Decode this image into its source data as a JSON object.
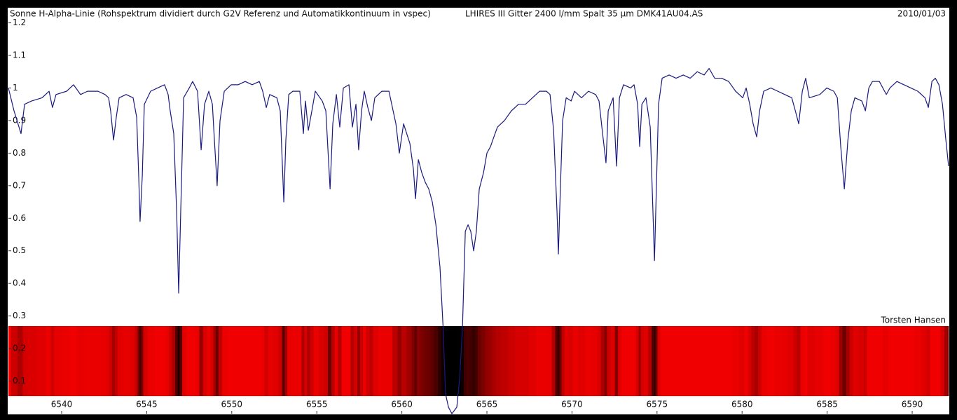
{
  "chart_data": {
    "type": "line",
    "title": "Sonne H-Alpha-Linie (Rohspektrum dividiert durch G2V Referenz und Automatikkontinuum in vspec)",
    "instrument": "LHIRES III  Gitter 2400 l/mm  Spalt 35 µm  DMK41AU04.AS",
    "date": "2010/01/03",
    "author": "Torsten Hansen",
    "color": "#1a1a80",
    "xlim": [
      6536.87,
      6592.14
    ],
    "ylim": [
      0,
      1.24
    ],
    "xticks": [
      6540,
      6545,
      6550,
      6555,
      6560,
      6565,
      6570,
      6575,
      6580,
      6585,
      6590
    ],
    "yticks": [
      0.1,
      0.2,
      0.3,
      0.4,
      0.5,
      0.6,
      0.7,
      0.8,
      0.9,
      1,
      1.1,
      1.2
    ],
    "x": [
      6536.87,
      6537.2,
      6537.61,
      6537.82,
      6538.23,
      6538.85,
      6539.26,
      6539.46,
      6539.67,
      6540.29,
      6540.7,
      6541.11,
      6541.52,
      6542.14,
      6542.55,
      6542.76,
      6542.88,
      6543.05,
      6543.21,
      6543.38,
      6543.79,
      6544.2,
      6544.41,
      6544.53,
      6544.61,
      6544.74,
      6544.86,
      6545.23,
      6545.64,
      6546.05,
      6546.26,
      6546.38,
      6546.59,
      6546.76,
      6546.88,
      6547.0,
      6547.17,
      6547.5,
      6547.7,
      6547.99,
      6548.2,
      6548.4,
      6548.65,
      6548.86,
      6548.98,
      6549.14,
      6549.31,
      6549.56,
      6549.97,
      6550.38,
      6550.79,
      6551.2,
      6551.62,
      6551.82,
      6552.03,
      6552.23,
      6552.65,
      6552.85,
      6553.06,
      6553.18,
      6553.35,
      6553.59,
      6554.0,
      6554.21,
      6554.33,
      6554.5,
      6554.71,
      6554.91,
      6555.32,
      6555.53,
      6555.78,
      6555.94,
      6556.15,
      6556.35,
      6556.56,
      6556.89,
      6557.09,
      6557.3,
      6557.46,
      6557.63,
      6557.79,
      6558.0,
      6558.21,
      6558.41,
      6558.82,
      6559.24,
      6559.65,
      6559.85,
      6560.1,
      6560.47,
      6560.68,
      6560.8,
      6560.97,
      6561.17,
      6561.38,
      6561.58,
      6561.79,
      6562.0,
      6562.24,
      6562.41,
      6562.57,
      6562.74,
      6562.94,
      6563.23,
      6563.4,
      6563.56,
      6563.73,
      6563.89,
      6564.05,
      6564.22,
      6564.38,
      6564.55,
      6564.8,
      6565.0,
      6565.21,
      6565.41,
      6565.62,
      6566.03,
      6566.44,
      6566.86,
      6567.27,
      6567.68,
      6568.09,
      6568.5,
      6568.71,
      6568.92,
      6569.12,
      6569.2,
      6569.33,
      6569.45,
      6569.66,
      6569.95,
      6570.15,
      6570.56,
      6570.97,
      6571.39,
      6571.59,
      6571.8,
      6572.0,
      6572.13,
      6572.42,
      6572.62,
      6572.79,
      6573.03,
      6573.45,
      6573.65,
      6573.86,
      6573.98,
      6574.11,
      6574.35,
      6574.6,
      6574.76,
      6574.85,
      6574.97,
      6575.09,
      6575.3,
      6575.71,
      6576.12,
      6576.54,
      6576.95,
      6577.36,
      6577.77,
      6578.06,
      6578.39,
      6578.8,
      6579.21,
      6579.62,
      6580.04,
      6580.24,
      6580.45,
      6580.65,
      6580.86,
      6581.03,
      6581.27,
      6581.69,
      6582.1,
      6582.51,
      6582.92,
      6583.13,
      6583.33,
      6583.54,
      6583.74,
      6583.95,
      6584.57,
      6584.98,
      6585.39,
      6585.6,
      6585.8,
      6586.01,
      6586.22,
      6586.42,
      6586.63,
      6587.04,
      6587.25,
      6587.45,
      6587.66,
      6588.07,
      6588.48,
      6588.69,
      6589.1,
      6589.51,
      6589.92,
      6590.33,
      6590.75,
      6590.95,
      6591.16,
      6591.36,
      6591.57,
      6591.78,
      6591.98,
      6592.14
    ],
    "values": [
      1.0,
      0.93,
      0.86,
      0.95,
      0.96,
      0.97,
      0.99,
      0.94,
      0.98,
      0.99,
      1.01,
      0.98,
      0.99,
      0.99,
      0.98,
      0.97,
      0.93,
      0.84,
      0.91,
      0.97,
      0.98,
      0.97,
      0.91,
      0.73,
      0.59,
      0.73,
      0.95,
      0.99,
      1.0,
      1.01,
      0.98,
      0.93,
      0.86,
      0.62,
      0.37,
      0.62,
      0.97,
      1.0,
      1.02,
      0.99,
      0.81,
      0.95,
      0.99,
      0.95,
      0.84,
      0.7,
      0.9,
      0.99,
      1.01,
      1.01,
      1.02,
      1.01,
      1.02,
      0.99,
      0.94,
      0.98,
      0.97,
      0.93,
      0.65,
      0.84,
      0.98,
      0.99,
      0.99,
      0.86,
      0.96,
      0.87,
      0.93,
      0.99,
      0.96,
      0.93,
      0.69,
      0.89,
      0.98,
      0.88,
      1.0,
      1.01,
      0.88,
      0.95,
      0.81,
      0.93,
      0.99,
      0.94,
      0.9,
      0.97,
      0.99,
      0.99,
      0.89,
      0.8,
      0.89,
      0.83,
      0.75,
      0.66,
      0.78,
      0.74,
      0.71,
      0.69,
      0.65,
      0.58,
      0.45,
      0.28,
      0.06,
      0.02,
      0.0,
      0.02,
      0.11,
      0.26,
      0.56,
      0.58,
      0.56,
      0.5,
      0.56,
      0.69,
      0.74,
      0.8,
      0.82,
      0.85,
      0.88,
      0.9,
      0.93,
      0.95,
      0.95,
      0.97,
      0.99,
      0.99,
      0.98,
      0.87,
      0.62,
      0.49,
      0.71,
      0.9,
      0.97,
      0.96,
      0.99,
      0.97,
      0.99,
      0.98,
      0.96,
      0.86,
      0.77,
      0.93,
      0.97,
      0.76,
      0.97,
      1.01,
      1.0,
      1.01,
      0.95,
      0.82,
      0.95,
      0.97,
      0.88,
      0.62,
      0.47,
      0.71,
      0.95,
      1.03,
      1.04,
      1.03,
      1.04,
      1.03,
      1.05,
      1.04,
      1.06,
      1.03,
      1.03,
      1.02,
      0.99,
      0.97,
      1.0,
      0.95,
      0.89,
      0.85,
      0.93,
      0.99,
      1.0,
      0.99,
      0.98,
      0.97,
      0.93,
      0.89,
      0.99,
      1.03,
      0.97,
      0.98,
      1.0,
      0.99,
      0.97,
      0.82,
      0.69,
      0.84,
      0.93,
      0.97,
      0.96,
      0.93,
      1.0,
      1.02,
      1.02,
      0.98,
      1.0,
      1.02,
      1.01,
      1.0,
      0.99,
      0.97,
      0.94,
      1.02,
      1.03,
      1.01,
      0.95,
      0.84,
      0.76
    ]
  }
}
